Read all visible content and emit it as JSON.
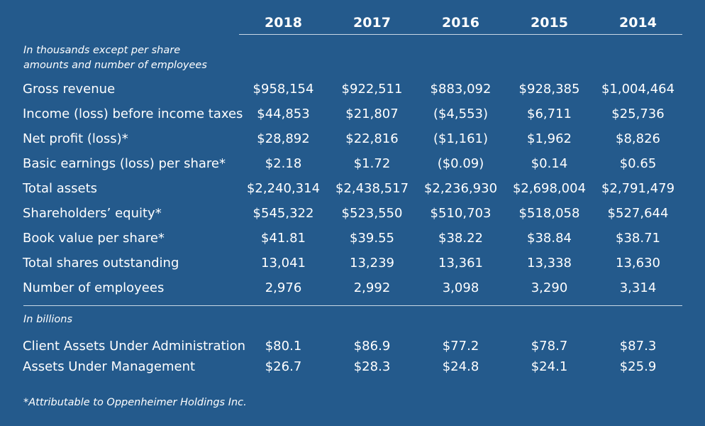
{
  "years": [
    "2018",
    "2017",
    "2016",
    "2015",
    "2014"
  ],
  "note_thousands": [
    "In thousands except per share",
    "amounts and number of employees"
  ],
  "rows": [
    {
      "label": "Gross revenue",
      "values": [
        "$958,154",
        "$922,511",
        "$883,092",
        "$928,385",
        "$1,004,464"
      ]
    },
    {
      "label": "Income (loss) before income taxes",
      "values": [
        "$44,853",
        "$21,807",
        "($4,553)",
        "$6,711",
        "$25,736"
      ]
    },
    {
      "label": "Net profit (loss)*",
      "values": [
        "$28,892",
        "$22,816",
        "($1,161)",
        "$1,962",
        "$8,826"
      ]
    },
    {
      "label": "Basic earnings (loss) per share*",
      "values": [
        "$2.18",
        "$1.72",
        "($0.09)",
        "$0.14",
        "$0.65"
      ]
    },
    {
      "label": "Total assets",
      "values": [
        "$2,240,314",
        "$2,438,517",
        "$2,236,930",
        "$2,698,004",
        "$2,791,479"
      ]
    },
    {
      "label": "Shareholders’ equity*",
      "values": [
        "$545,322",
        "$523,550",
        "$510,703",
        "$518,058",
        "$527,644"
      ]
    },
    {
      "label": "Book value per share*",
      "values": [
        "$41.81",
        "$39.55",
        "$38.22",
        "$38.84",
        "$38.71"
      ]
    },
    {
      "label": "Total shares outstanding",
      "values": [
        "13,041",
        "13,239",
        "13,361",
        "13,338",
        "13,630"
      ]
    },
    {
      "label": "Number of employees",
      "values": [
        "2,976",
        "2,992",
        "3,098",
        "3,290",
        "3,314"
      ]
    }
  ],
  "note_billions": "In billions",
  "rows_billions": [
    {
      "label": "Client Assets Under Administration",
      "values": [
        "$80.1",
        "$86.9",
        "$77.2",
        "$78.7",
        "$87.3"
      ]
    },
    {
      "label": "Assets Under Management",
      "values": [
        "$26.7",
        "$28.3",
        "$24.8",
        "$24.1",
        "$25.9"
      ]
    }
  ],
  "footnote": "*Attributable to Oppenheimer Holdings Inc."
}
